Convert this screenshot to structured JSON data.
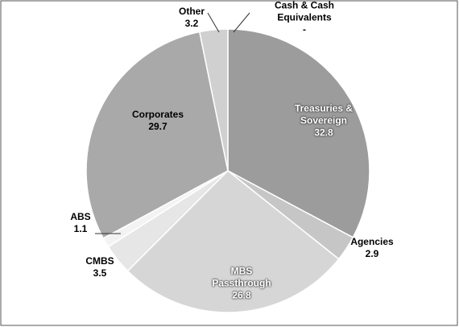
{
  "chart_data": {
    "type": "pie",
    "categories": [
      "Cash & Cash Equivalents",
      "Treasuries & Sovereign",
      "Agencies",
      "MBS Passthrough",
      "CMBS",
      "ABS",
      "Corporates",
      "Other"
    ],
    "values": [
      0,
      32.8,
      2.9,
      26.8,
      3.5,
      1.1,
      29.7,
      3.2
    ],
    "value_labels": [
      "-",
      "32.8",
      "2.9",
      "26.8",
      "3.5",
      "1.1",
      "29.7",
      "3.2"
    ],
    "colors": [
      "#8a8a8a",
      "#9c9c9c",
      "#c6c6c6",
      "#d6d6d6",
      "#e6e6e6",
      "#f3f3f3",
      "#a9a9a9",
      "#d0d0d0"
    ]
  }
}
